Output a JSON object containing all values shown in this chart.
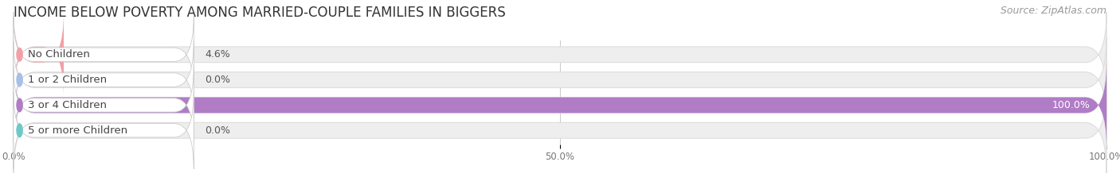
{
  "title": "INCOME BELOW POVERTY AMONG MARRIED-COUPLE FAMILIES IN BIGGERS",
  "source": "Source: ZipAtlas.com",
  "categories": [
    "No Children",
    "1 or 2 Children",
    "3 or 4 Children",
    "5 or more Children"
  ],
  "values": [
    4.6,
    0.0,
    100.0,
    0.0
  ],
  "bar_colors": [
    "#f2a0a8",
    "#a8bfe8",
    "#b07cc6",
    "#6ec8c8"
  ],
  "bar_height": 0.62,
  "xlim": [
    0,
    100
  ],
  "xticks": [
    0,
    50,
    100
  ],
  "xtick_labels": [
    "0.0%",
    "50.0%",
    "100.0%"
  ],
  "background_color": "#ffffff",
  "bar_bg_color": "#eeeeee",
  "title_fontsize": 12,
  "source_fontsize": 9,
  "label_fontsize": 9.5,
  "value_fontsize": 9
}
